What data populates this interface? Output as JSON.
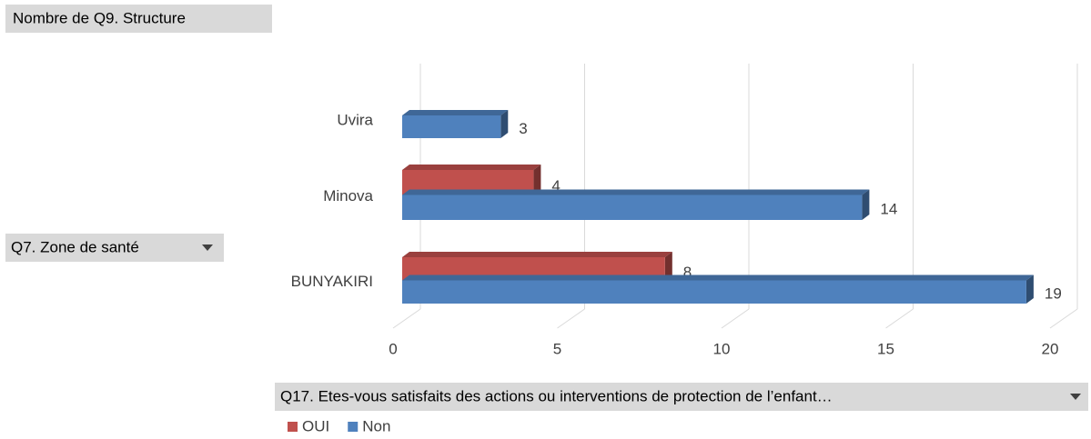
{
  "chart_data": {
    "type": "bar",
    "orientation": "horizontal",
    "three_d": true,
    "value_field": "Nombre de Q9. Structure",
    "axis_field": "Q7. Zone de santé",
    "legend_field": "Q17. Etes-vous satisfaits des actions ou interventions de protection de l’enfant…",
    "categories": [
      "Uvira",
      "Minova",
      "BUNYAKIRI"
    ],
    "series": [
      {
        "name": "OUI",
        "color": "#c0504d",
        "values": [
          null,
          4,
          8
        ]
      },
      {
        "name": "Non",
        "color": "#4f81bd",
        "values": [
          3,
          14,
          19
        ]
      }
    ],
    "xlim": [
      0,
      20
    ],
    "xticks": [
      0,
      5,
      10,
      15,
      20
    ],
    "grid": true,
    "legend": "bottom"
  }
}
